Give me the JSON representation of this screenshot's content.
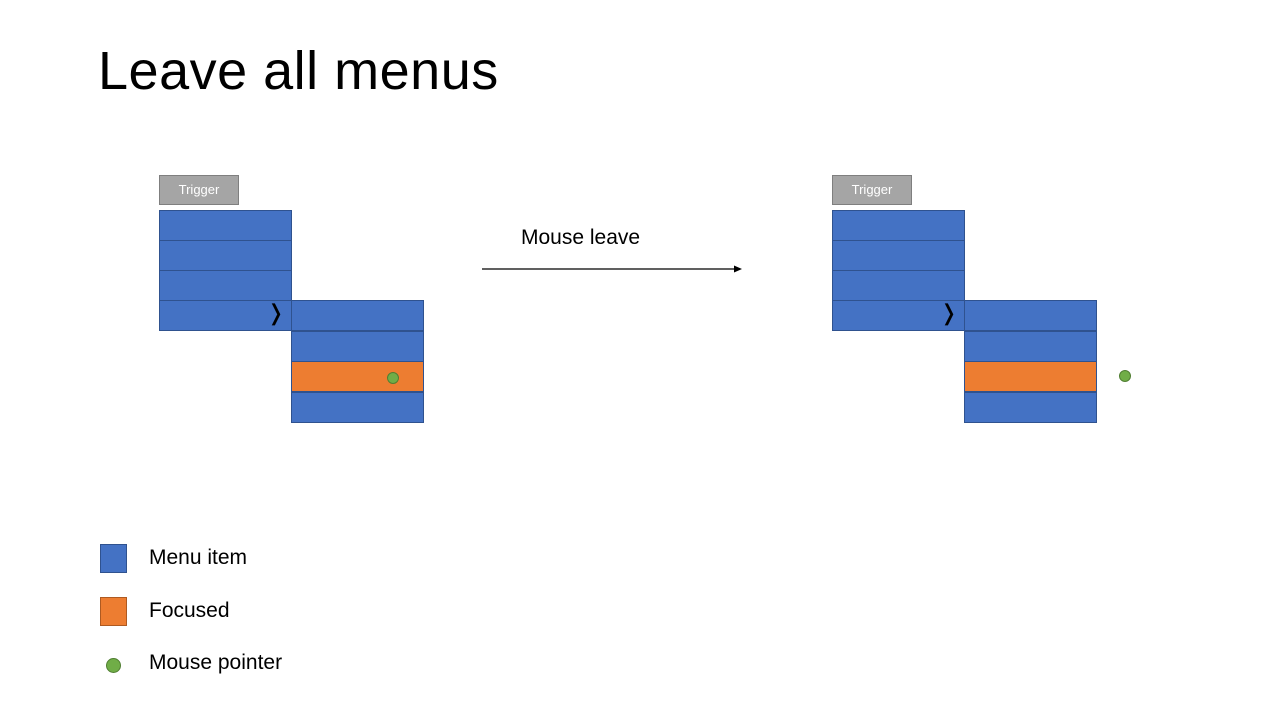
{
  "slide": {
    "title": "Leave all menus",
    "arrow_label": "Mouse leave"
  },
  "diagrams": [
    {
      "trigger_label": "Trigger",
      "menu_item_count": 4,
      "submenu_indicator": "❭",
      "submenu_item_count": 4,
      "focused_submenu_item_index": 2,
      "mouse_position": "inside focused item"
    },
    {
      "trigger_label": "Trigger",
      "menu_item_count": 4,
      "submenu_indicator": "❭",
      "submenu_item_count": 4,
      "focused_submenu_item_index": 2,
      "mouse_position": "outside submenu, right of focused item"
    }
  ],
  "legend": [
    {
      "label": "Menu item",
      "color": "#4472c4",
      "shape": "square"
    },
    {
      "label": "Focused",
      "color": "#ed7d31",
      "shape": "square"
    },
    {
      "label": "Mouse pointer",
      "color": "#70ad47",
      "shape": "circle"
    }
  ],
  "colors": {
    "menu_item": "#4472c4",
    "focused": "#ed7d31",
    "mouse": "#70ad47",
    "trigger": "#a5a5a5"
  }
}
